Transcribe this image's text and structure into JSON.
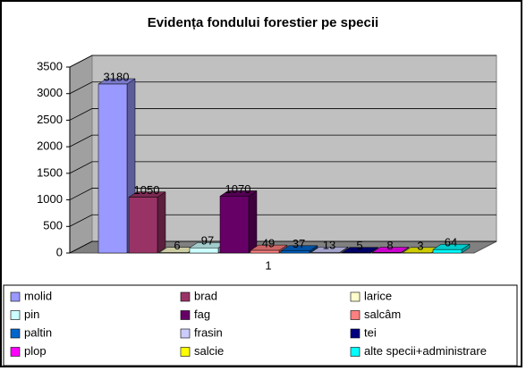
{
  "chart_data": {
    "type": "bar",
    "title": "Evidența fondului forestier pe specii",
    "categories": [
      "1"
    ],
    "series": [
      {
        "name": "molid",
        "color": "#9999ff",
        "values": [
          3180
        ]
      },
      {
        "name": "brad",
        "color": "#993366",
        "values": [
          1050
        ]
      },
      {
        "name": "larice",
        "color": "#ffffcc",
        "values": [
          6
        ]
      },
      {
        "name": "pin",
        "color": "#ccffff",
        "values": [
          97
        ]
      },
      {
        "name": "fag",
        "color": "#660066",
        "values": [
          1070
        ]
      },
      {
        "name": "salcâm",
        "color": "#ff8080",
        "values": [
          49
        ]
      },
      {
        "name": "paltin",
        "color": "#0066cc",
        "values": [
          37
        ]
      },
      {
        "name": "frasin",
        "color": "#ccccff",
        "values": [
          13
        ]
      },
      {
        "name": "tei",
        "color": "#000080",
        "values": [
          5
        ]
      },
      {
        "name": "plop",
        "color": "#ff00ff",
        "values": [
          8
        ]
      },
      {
        "name": "salcie",
        "color": "#ffff00",
        "values": [
          3
        ]
      },
      {
        "name": "alte specii+administrare",
        "color": "#00ffff",
        "values": [
          64
        ]
      }
    ],
    "ylim": [
      0,
      3500
    ],
    "yticks": [
      0,
      500,
      1000,
      1500,
      2000,
      2500,
      3000,
      3500
    ],
    "grid": true,
    "legend": "bottom"
  }
}
